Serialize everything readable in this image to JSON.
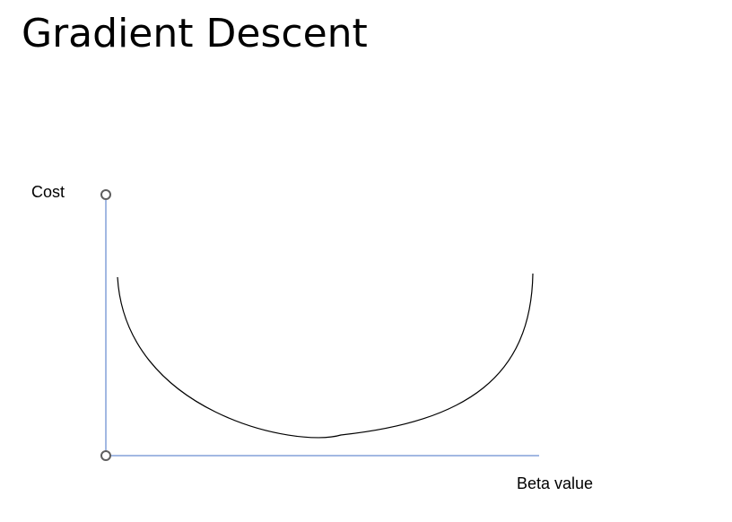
{
  "slide": {
    "title": "Gradient Descent"
  },
  "diagram": {
    "y_axis_label": "Cost",
    "x_axis_label": "Beta value",
    "colors": {
      "axis": "#4472c4",
      "curve": "#000000",
      "handle_stroke": "#5f5f5f",
      "handle_fill": "#ffffff"
    }
  }
}
